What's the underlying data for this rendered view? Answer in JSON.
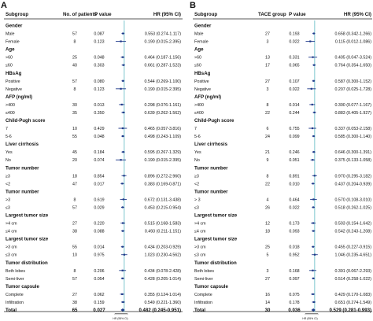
{
  "panel_a": {
    "letter": "A",
    "headers": [
      "Subgroup",
      "No. of patients",
      "P value",
      "HR (95% CI)"
    ]
  },
  "panel_b": {
    "letter": "B",
    "headers": [
      "Subgroup",
      "TACE group",
      "P value",
      "HR (95% CI)"
    ]
  },
  "axis_label": "HR (95% CI)",
  "colors": {
    "ci_line": "#1f3a8a",
    "marker": "#1f3a8a",
    "ref_line": "#6fc1c9",
    "rule": "#222222"
  },
  "chart_data": [
    {
      "type": "forest",
      "panel": "A",
      "rows": [
        {
          "kind": "group",
          "label": "Gender"
        },
        {
          "kind": "item",
          "label": "Male",
          "n": "57",
          "p": "0.087",
          "hr_text": "0.553 (0.274-1.117)",
          "hr": 0.553,
          "lo": 0.274,
          "hi": 1.117
        },
        {
          "kind": "item",
          "label": "Female",
          "n": "8",
          "p": "0.123",
          "hr_text": "0.190 (0.015-2.395)",
          "hr": 0.19,
          "lo": 0.015,
          "hi": 2.395
        },
        {
          "kind": "group",
          "label": "Age"
        },
        {
          "kind": "item",
          "label": ">60",
          "n": "25",
          "p": "0.048",
          "hr_text": "0.464 (0.187-1.156)",
          "hr": 0.464,
          "lo": 0.187,
          "hi": 1.156
        },
        {
          "kind": "item",
          "label": "≤60",
          "n": "40",
          "p": "0.303",
          "hr_text": "0.661 (0.287-1.523)",
          "hr": 0.661,
          "lo": 0.287,
          "hi": 1.523
        },
        {
          "kind": "group",
          "label": "HBsAg"
        },
        {
          "kind": "item",
          "label": "Positive",
          "n": "57",
          "p": "0.080",
          "hr_text": "0.544 (0.269-1.100)",
          "hr": 0.544,
          "lo": 0.269,
          "hi": 1.1
        },
        {
          "kind": "item",
          "label": "Negative",
          "n": "8",
          "p": "0.123",
          "hr_text": "0.190 (0.015-2.395)",
          "hr": 0.19,
          "lo": 0.015,
          "hi": 2.395
        },
        {
          "kind": "group",
          "label": "AFP (ng/ml)"
        },
        {
          "kind": "item",
          "label": ">400",
          "n": "30",
          "p": "0.013",
          "hr_text": "0.298 (0.076-1.161)",
          "hr": 0.298,
          "lo": 0.076,
          "hi": 1.161
        },
        {
          "kind": "item",
          "label": "≤400",
          "n": "35",
          "p": "0.350",
          "hr_text": "0.639 (0.262-1.562)",
          "hr": 0.639,
          "lo": 0.262,
          "hi": 1.562
        },
        {
          "kind": "group",
          "label": "Child-Pugh score"
        },
        {
          "kind": "item",
          "label": "7",
          "n": "10",
          "p": "0.429",
          "hr_text": "0.465 (0.057-3.816)",
          "hr": 0.465,
          "lo": 0.057,
          "hi": 3.816
        },
        {
          "kind": "item",
          "label": "5-6",
          "n": "55",
          "p": "0.048",
          "hr_text": "0.498 (0.243-1.109)",
          "hr": 0.498,
          "lo": 0.243,
          "hi": 1.109
        },
        {
          "kind": "group",
          "label": "Liver cirrhosis"
        },
        {
          "kind": "item",
          "label": "Yes",
          "n": "45",
          "p": "0.184",
          "hr_text": "0.595 (0.267-1.329)",
          "hr": 0.595,
          "lo": 0.267,
          "hi": 1.329
        },
        {
          "kind": "item",
          "label": "No",
          "n": "20",
          "p": "0.074",
          "hr_text": "0.190 (0.015-2.395)",
          "hr": 0.19,
          "lo": 0.015,
          "hi": 2.395
        },
        {
          "kind": "group",
          "label": "Tumor number"
        },
        {
          "kind": "item",
          "label": "≥3",
          "n": "18",
          "p": "0.854",
          "hr_text": "0.896 (0.272-2.960)",
          "hr": 0.896,
          "lo": 0.272,
          "hi": 2.96
        },
        {
          "kind": "item",
          "label": "<2",
          "n": "47",
          "p": "0.017",
          "hr_text": "0.383 (0.169-0.871)",
          "hr": 0.383,
          "lo": 0.169,
          "hi": 0.871
        },
        {
          "kind": "group",
          "label": "Tumor number"
        },
        {
          "kind": "item",
          "label": ">3",
          "n": "8",
          "p": "0.619",
          "hr_text": "0.672 (0.131-3.438)",
          "hr": 0.672,
          "lo": 0.131,
          "hi": 3.438
        },
        {
          "kind": "item",
          "label": "≤3",
          "n": "57",
          "p": "0.029",
          "hr_text": "0.453 (0.215-0.954)",
          "hr": 0.453,
          "lo": 0.215,
          "hi": 0.954
        },
        {
          "kind": "group",
          "label": "Largest tumor size"
        },
        {
          "kind": "item",
          "label": ">4 cm",
          "n": "27",
          "p": "0.220",
          "hr_text": "0.515 (0.168-1.583)",
          "hr": 0.515,
          "lo": 0.168,
          "hi": 1.583
        },
        {
          "kind": "item",
          "label": "≤4 cm",
          "n": "38",
          "p": "0.088",
          "hr_text": "0.493 (0.211-1.151)",
          "hr": 0.493,
          "lo": 0.211,
          "hi": 1.151
        },
        {
          "kind": "group",
          "label": "Largest tumor size"
        },
        {
          "kind": "item",
          "label": ">3 cm",
          "n": "55",
          "p": "0.014",
          "hr_text": "0.434 (0.203-0.929)",
          "hr": 0.434,
          "lo": 0.203,
          "hi": 0.929
        },
        {
          "kind": "item",
          "label": "≤3 cm",
          "n": "10",
          "p": "0.975",
          "hr_text": "1.023 (0.230-4.562)",
          "hr": 1.023,
          "lo": 0.23,
          "hi": 4.562
        },
        {
          "kind": "group",
          "label": "Tumor distribution"
        },
        {
          "kind": "item",
          "label": "Both lobes",
          "n": "8",
          "p": "0.206",
          "hr_text": "0.434 (0.078-2.428)",
          "hr": 0.434,
          "lo": 0.078,
          "hi": 2.428
        },
        {
          "kind": "item",
          "label": "Semi-liver",
          "n": "57",
          "p": "0.054",
          "hr_text": "0.428 (0.205-1.014)",
          "hr": 0.428,
          "lo": 0.205,
          "hi": 1.014
        },
        {
          "kind": "group",
          "label": "Tumor capsule"
        },
        {
          "kind": "item",
          "label": "Complete",
          "n": "27",
          "p": "0.062",
          "hr_text": "0.355 (0.124-1.014)",
          "hr": 0.355,
          "lo": 0.124,
          "hi": 1.014
        },
        {
          "kind": "item",
          "label": "Infiltration",
          "n": "38",
          "p": "0.159",
          "hr_text": "0.549 (0.221-1.360)",
          "hr": 0.549,
          "lo": 0.221,
          "hi": 1.36
        },
        {
          "kind": "total",
          "label": "Total",
          "n": "65",
          "p": "0.027",
          "hr_text": "0.482 (0.245-0.951)",
          "hr": 0.482,
          "lo": 0.245,
          "hi": 0.951
        }
      ]
    },
    {
      "type": "forest",
      "panel": "B",
      "rows": [
        {
          "kind": "group",
          "label": "Gender"
        },
        {
          "kind": "item",
          "label": "Male",
          "n": "27",
          "p": "0.193",
          "hr_text": "0.658 (0.342-1.266)",
          "hr": 0.658,
          "lo": 0.342,
          "hi": 1.266
        },
        {
          "kind": "item",
          "label": "Female",
          "n": "3",
          "p": "0.022",
          "hr_text": "0.115 (0.012-1.086)",
          "hr": 0.115,
          "lo": 0.012,
          "hi": 1.086
        },
        {
          "kind": "group",
          "label": "Age"
        },
        {
          "kind": "item",
          "label": ">60",
          "n": "13",
          "p": "0.331",
          "hr_text": "0.405 (0.047-3.524)",
          "hr": 0.405,
          "lo": 0.047,
          "hi": 3.524
        },
        {
          "kind": "item",
          "label": "≤60",
          "n": "17",
          "p": "0.065",
          "hr_text": "0.764 (0.354-1.650)",
          "hr": 0.764,
          "lo": 0.354,
          "hi": 1.65
        },
        {
          "kind": "group",
          "label": "HBsAg"
        },
        {
          "kind": "item",
          "label": "Positive",
          "n": "27",
          "p": "0.107",
          "hr_text": "0.587 (0.300-1.152)",
          "hr": 0.587,
          "lo": 0.3,
          "hi": 1.152
        },
        {
          "kind": "item",
          "label": "Negative",
          "n": "3",
          "p": "0.022",
          "hr_text": "0.207 (0.025-1.728)",
          "hr": 0.207,
          "lo": 0.025,
          "hi": 1.728
        },
        {
          "kind": "group",
          "label": "AFP (ng/ml)"
        },
        {
          "kind": "item",
          "label": ">400",
          "n": "8",
          "p": "0.014",
          "hr_text": "0.300 (0.077-1.167)",
          "hr": 0.3,
          "lo": 0.077,
          "hi": 1.167
        },
        {
          "kind": "item",
          "label": "≤400",
          "n": "22",
          "p": "0.244",
          "hr_text": "0.883 (0.405-1.927)",
          "hr": 0.883,
          "lo": 0.405,
          "hi": 1.927
        },
        {
          "kind": "group",
          "label": "Child-Pugh score"
        },
        {
          "kind": "item",
          "label": "7",
          "n": "6",
          "p": "0.755",
          "hr_text": "0.337 (0.053-2.158)",
          "hr": 0.337,
          "lo": 0.053,
          "hi": 2.158
        },
        {
          "kind": "item",
          "label": "5-6",
          "n": "24",
          "p": "0.099",
          "hr_text": "0.585 (0.300-1.140)",
          "hr": 0.585,
          "lo": 0.3,
          "hi": 1.14
        },
        {
          "kind": "group",
          "label": "Liver cirrhosis"
        },
        {
          "kind": "item",
          "label": "Yes",
          "n": "21",
          "p": "0.246",
          "hr_text": "0.646 (0.300-1.391)",
          "hr": 0.646,
          "lo": 0.3,
          "hi": 1.391
        },
        {
          "kind": "item",
          "label": "No",
          "n": "9",
          "p": "0.051",
          "hr_text": "0.375 (0.133-1.058)",
          "hr": 0.375,
          "lo": 0.133,
          "hi": 1.058
        },
        {
          "kind": "group",
          "label": "Tumor number"
        },
        {
          "kind": "item",
          "label": "≥3",
          "n": "8",
          "p": "0.891",
          "hr_text": "0.970 (0.295-3.182)",
          "hr": 0.97,
          "lo": 0.295,
          "hi": 3.182
        },
        {
          "kind": "item",
          "label": "<2",
          "n": "22",
          "p": "0.010",
          "hr_text": "0.437 (0.204-0.939)",
          "hr": 0.437,
          "lo": 0.204,
          "hi": 0.939
        },
        {
          "kind": "group",
          "label": "Tumor number"
        },
        {
          "kind": "item",
          "label": "> 3",
          "n": "4",
          "p": "0.464",
          "hr_text": "0.570 (0.108-3.010)",
          "hr": 0.57,
          "lo": 0.108,
          "hi": 3.01
        },
        {
          "kind": "item",
          "label": "≤3",
          "n": "26",
          "p": "0.022",
          "hr_text": "0.518 (0.262-1.025)",
          "hr": 0.518,
          "lo": 0.262,
          "hi": 1.025
        },
        {
          "kind": "group",
          "label": "Largest tumor size"
        },
        {
          "kind": "item",
          "label": ">4 cm",
          "n": "12",
          "p": "0.173",
          "hr_text": "0.503 (0.154-1.642)",
          "hr": 0.503,
          "lo": 0.154,
          "hi": 1.642
        },
        {
          "kind": "item",
          "label": "≤4 cm",
          "n": "18",
          "p": "0.093",
          "hr_text": "0.542 (0.243-1.208)",
          "hr": 0.542,
          "lo": 0.243,
          "hi": 1.208
        },
        {
          "kind": "group",
          "label": "Largest tumor size"
        },
        {
          "kind": "item",
          "label": ">3 cm",
          "n": "25",
          "p": "0.018",
          "hr_text": "0.455 (0.227-0.915)",
          "hr": 0.455,
          "lo": 0.227,
          "hi": 0.915
        },
        {
          "kind": "item",
          "label": "≤3 cm",
          "n": "5",
          "p": "0.952",
          "hr_text": "1.046 (0.235-4.651)",
          "hr": 1.046,
          "lo": 0.235,
          "hi": 4.651
        },
        {
          "kind": "group",
          "label": "Tumor distribution"
        },
        {
          "kind": "item",
          "label": "Both lobes",
          "n": "3",
          "p": "0.168",
          "hr_text": "0.391 (0.067-2.293)",
          "hr": 0.391,
          "lo": 0.067,
          "hi": 2.293
        },
        {
          "kind": "item",
          "label": "Semi-liver",
          "n": "27",
          "p": "0.097",
          "hr_text": "0.514 (0.258-1.022)",
          "hr": 0.514,
          "lo": 0.258,
          "hi": 1.022
        },
        {
          "kind": "group",
          "label": "Tumor capsule"
        },
        {
          "kind": "item",
          "label": "Complete",
          "n": "16",
          "p": "0.075",
          "hr_text": "0.429 (0.170-1.083)",
          "hr": 0.429,
          "lo": 0.17,
          "hi": 1.083
        },
        {
          "kind": "item",
          "label": "Infiltration",
          "n": "14",
          "p": "0.178",
          "hr_text": "0.651 (0.274-1.549)",
          "hr": 0.651,
          "lo": 0.274,
          "hi": 1.549
        },
        {
          "kind": "total",
          "label": "Total",
          "n": "30",
          "p": "0.036",
          "hr_text": "0.529 (0.281-0.993)",
          "hr": 0.529,
          "lo": 0.281,
          "hi": 0.993
        }
      ]
    }
  ]
}
